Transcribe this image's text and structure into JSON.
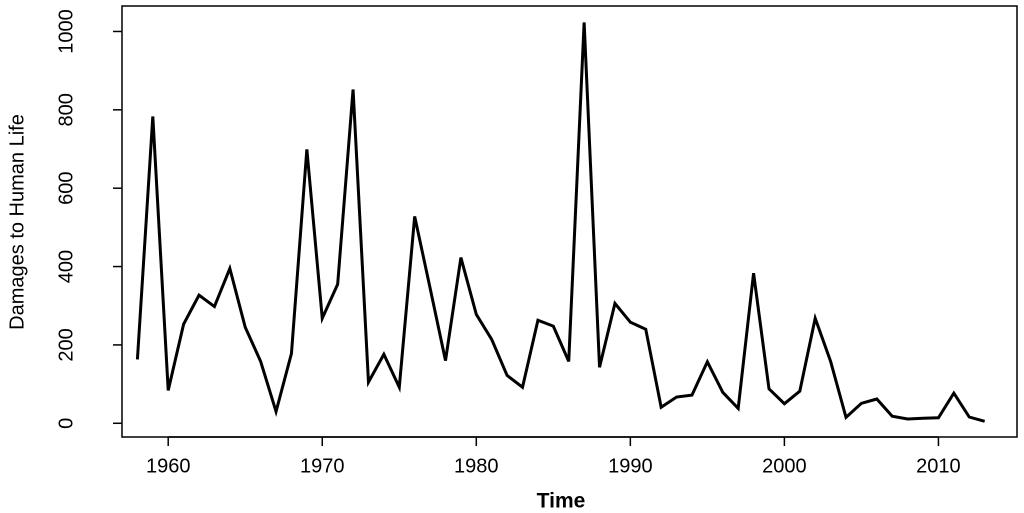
{
  "chart_data": {
    "type": "line",
    "xlabel": "Time",
    "ylabel": "Damages to Human Life",
    "x": [
      1958,
      1959,
      1960,
      1961,
      1962,
      1963,
      1964,
      1965,
      1966,
      1967,
      1968,
      1969,
      1970,
      1971,
      1972,
      1973,
      1974,
      1975,
      1976,
      1977,
      1978,
      1979,
      1980,
      1981,
      1982,
      1983,
      1984,
      1985,
      1986,
      1987,
      1988,
      1989,
      1990,
      1991,
      1992,
      1993,
      1994,
      1995,
      1996,
      1997,
      1998,
      1999,
      2000,
      2001,
      2002,
      2003,
      2004,
      2005,
      2006,
      2007,
      2008,
      2009,
      2010,
      2011,
      2012,
      2013
    ],
    "values": [
      163,
      783,
      84,
      253,
      327,
      298,
      395,
      245,
      158,
      30,
      178,
      699,
      268,
      355,
      852,
      105,
      176,
      92,
      528,
      345,
      160,
      423,
      278,
      214,
      122,
      92,
      263,
      248,
      158,
      1023,
      143,
      306,
      258,
      240,
      41,
      67,
      72,
      157,
      79,
      38,
      383,
      88,
      50,
      82,
      268,
      158,
      15,
      51,
      62,
      18,
      11,
      13,
      14,
      77,
      16,
      5
    ],
    "color": "#000000",
    "xlim": [
      1957,
      2015.1
    ],
    "xticks": [
      1960,
      1970,
      1980,
      1990,
      2000,
      2010
    ],
    "ylim": [
      -35,
      1065
    ],
    "yticks": [
      0,
      200,
      400,
      600,
      800,
      1000
    ]
  }
}
